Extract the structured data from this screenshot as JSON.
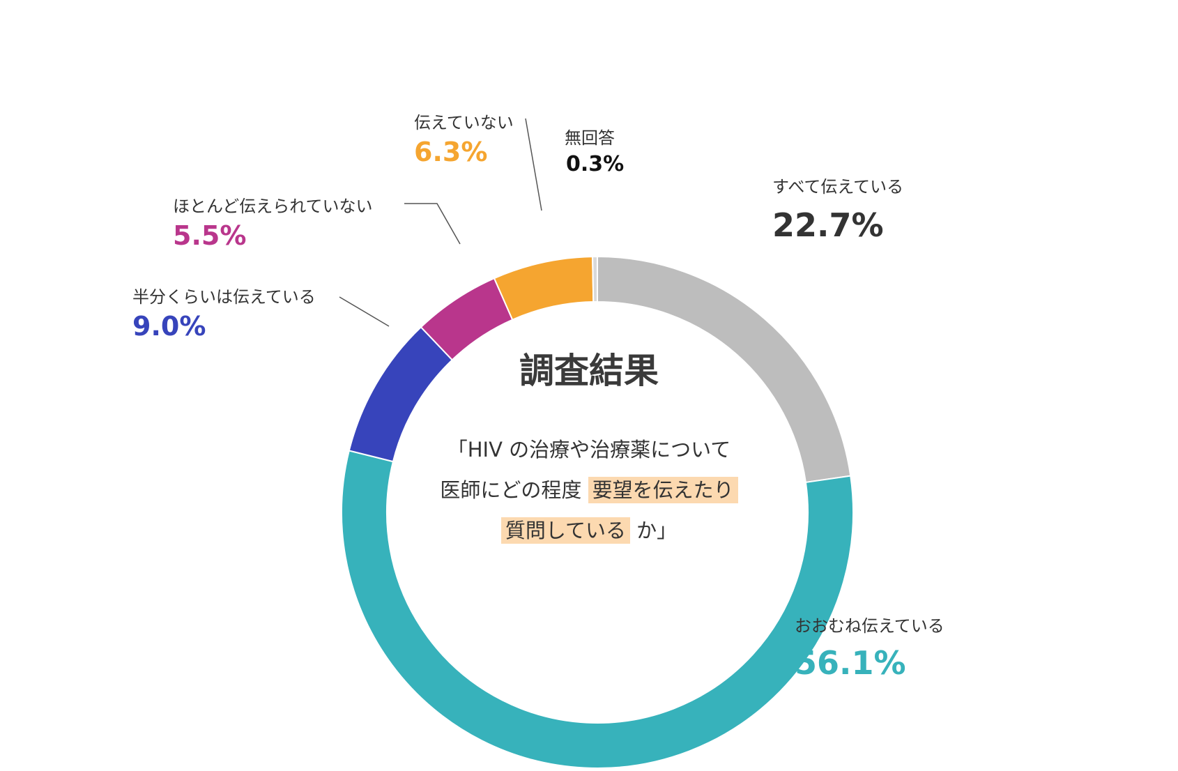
{
  "chart_data": {
    "type": "pie",
    "categories": [
      "すべて伝えている",
      "おおむね伝えている",
      "半分くらいは伝えている",
      "ほとんど伝えられていない",
      "伝えていない",
      "無回答"
    ],
    "values": [
      22.7,
      56.1,
      9.0,
      5.5,
      6.3,
      0.3
    ],
    "value_labels": [
      "22.7%",
      "56.1%",
      "9.0%",
      "5.5%",
      "6.3%",
      "0.3%"
    ],
    "colors": [
      "#bdbdbd",
      "#37b2bb",
      "#3744bb",
      "#b9368c",
      "#f5a530",
      "#d9d9d9"
    ],
    "label_colors": [
      "#333333",
      "#37b2bb",
      "#3744bb",
      "#b9368c",
      "#f5a530",
      "#111111"
    ],
    "title": "調査結果",
    "question": {
      "line1": "「HIV の治療や治療薬について",
      "line2_plain": "医師にどの程度",
      "line2_highlight": "要望を伝えたり",
      "line3_highlight": "質問している",
      "line3_plain": "か」"
    },
    "highlight_color": "#fcd9b0",
    "legend": "none"
  }
}
